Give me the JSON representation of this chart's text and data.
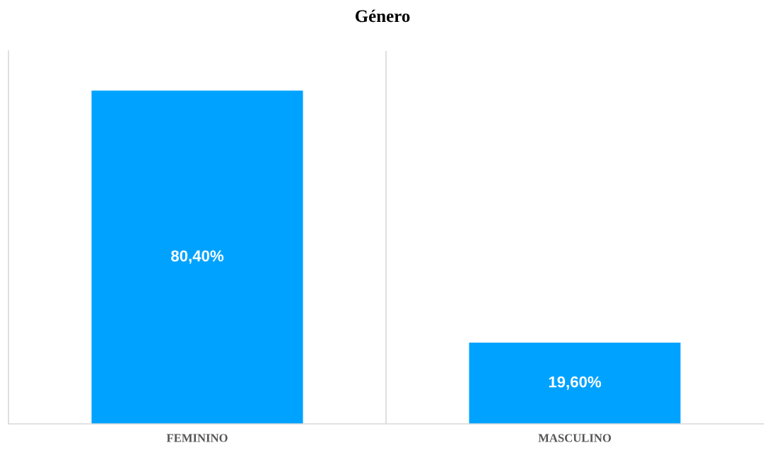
{
  "chart_data": {
    "type": "bar",
    "title": "Género",
    "categories": [
      "FEMININO",
      "MASCULINO"
    ],
    "values": [
      80.4,
      19.6
    ],
    "value_labels": [
      "80,40%",
      "19,60%"
    ],
    "color": "#00a2ff",
    "ylim": [
      0,
      90
    ],
    "grid": "x",
    "legend": false
  }
}
